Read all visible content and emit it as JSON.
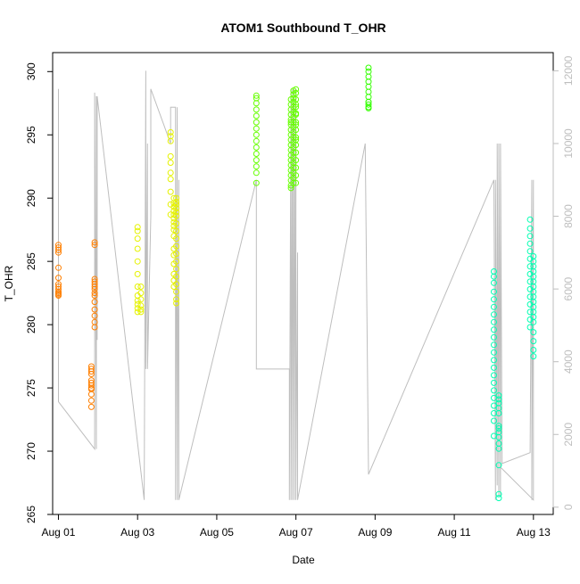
{
  "chart_data": {
    "type": "scatter",
    "title": "ATOM1 Southbound T_OHR",
    "xlabel": "Date",
    "ylabel": "T_OHR",
    "xlim": [
      "2016-07-31T20:30",
      "2016-08-13T12:00"
    ],
    "ylim": [
      265,
      301.5
    ],
    "y2lim": [
      -200,
      12500
    ],
    "grid": false,
    "legend": "none",
    "x_ticks": [
      {
        "date": "2016-08-01",
        "label": "Aug 01"
      },
      {
        "date": "2016-08-03",
        "label": "Aug 03"
      },
      {
        "date": "2016-08-05",
        "label": "Aug 05"
      },
      {
        "date": "2016-08-07",
        "label": "Aug 07"
      },
      {
        "date": "2016-08-09",
        "label": "Aug 09"
      },
      {
        "date": "2016-08-11",
        "label": "Aug 11"
      },
      {
        "date": "2016-08-13",
        "label": "Aug 13"
      }
    ],
    "y_ticks": [
      265,
      270,
      275,
      280,
      285,
      290,
      295,
      300
    ],
    "y2_ticks": [
      0,
      2000,
      4000,
      6000,
      8000,
      10000,
      12000
    ],
    "colors": {
      "line": "#bebebe",
      "axis": "#000000",
      "right_axis": "#bebebe"
    },
    "secondary_line": {
      "axis": "right",
      "x": [
        "2016-08-01T00:00",
        "2016-08-01T00:00",
        "2016-08-01T00:00",
        "2016-08-01T00:00",
        "2016-08-01T22:00",
        "2016-08-01T22:00",
        "2016-08-01T23:00",
        "2016-08-01T23:00",
        "2016-08-01T23:30",
        "2016-08-01T23:30",
        "2016-08-03T04:00",
        "2016-08-03T05:00",
        "2016-08-03T05:00",
        "2016-08-03T06:00",
        "2016-08-03T06:00",
        "2016-08-03T08:00",
        "2016-08-03T08:00",
        "2016-08-03T20:00",
        "2016-08-03T20:00",
        "2016-08-03T23:00",
        "2016-08-03T23:00",
        "2016-08-04T00:00",
        "2016-08-04T00:00",
        "2016-08-04T01:00",
        "2016-08-04T01:00",
        "2016-08-06T00:00",
        "2016-08-06T00:00",
        "2016-08-06T02:00",
        "2016-08-06T20:00",
        "2016-08-06T20:00",
        "2016-08-06T21:00",
        "2016-08-06T21:00",
        "2016-08-06T22:00",
        "2016-08-06T22:00",
        "2016-08-06T23:00",
        "2016-08-06T23:00",
        "2016-08-07T00:00",
        "2016-08-07T00:00",
        "2016-08-07T01:00",
        "2016-08-07T01:00",
        "2016-08-08T18:00",
        "2016-08-08T20:00",
        "2016-08-12T00:00",
        "2016-08-12T01:00",
        "2016-08-12T01:00",
        "2016-08-12T02:00",
        "2016-08-12T02:00",
        "2016-08-12T03:00",
        "2016-08-12T03:00",
        "2016-08-12T04:00",
        "2016-08-12T04:00",
        "2016-08-12T05:00",
        "2016-08-12T22:00",
        "2016-08-12T23:00",
        "2016-08-12T23:00",
        "2016-08-13T00:00",
        "2016-08-13T00:00",
        "2016-08-12T04:00"
      ],
      "y": [
        10000,
        11500,
        3300,
        2900,
        1600,
        11400,
        1600,
        11300,
        4600,
        11300,
        200,
        12000,
        3800,
        10000,
        3800,
        8000,
        11500,
        10000,
        11000,
        11000,
        200,
        11000,
        200,
        9000,
        200,
        9000,
        3800,
        3800,
        3800,
        200,
        11500,
        200,
        11500,
        200,
        11500,
        200,
        11500,
        200,
        7000,
        200,
        10000,
        900,
        9000,
        200,
        9000,
        600,
        10000,
        300,
        10000,
        300,
        10000,
        1200,
        1500,
        9000,
        200,
        9000,
        200,
        1100
      ]
    },
    "series": [
      {
        "color": "#ff7f00",
        "x": [
          "2016-08-01T00:00",
          "2016-08-01T00:00",
          "2016-08-01T00:00",
          "2016-08-01T00:00",
          "2016-08-01T00:00",
          "2016-08-01T00:00",
          "2016-08-01T00:00",
          "2016-08-01T00:00",
          "2016-08-01T00:00",
          "2016-08-01T00:00",
          "2016-08-01T00:00",
          "2016-08-01T00:00",
          "2016-08-01T00:00",
          "2016-08-01T20:00",
          "2016-08-01T20:00",
          "2016-08-01T20:00",
          "2016-08-01T20:00",
          "2016-08-01T20:00",
          "2016-08-01T20:00",
          "2016-08-01T20:00",
          "2016-08-01T20:00",
          "2016-08-01T20:00",
          "2016-08-01T20:00",
          "2016-08-01T20:00",
          "2016-08-01T20:00",
          "2016-08-01T22:00",
          "2016-08-01T22:00",
          "2016-08-01T22:00",
          "2016-08-01T22:00",
          "2016-08-01T22:00",
          "2016-08-01T22:00",
          "2016-08-01T22:00",
          "2016-08-01T22:00",
          "2016-08-01T22:00",
          "2016-08-01T22:00",
          "2016-08-01T22:00",
          "2016-08-01T22:00",
          "2016-08-01T22:00",
          "2016-08-01T22:00"
        ],
        "y": [
          286.3,
          286.1,
          285.7,
          284.5,
          283.7,
          283.2,
          282.8,
          282.6,
          282.5,
          282.4,
          282.3,
          283.0,
          285.9,
          276.7,
          276.5,
          276.1,
          275.6,
          275.4,
          275.2,
          275.0,
          274.9,
          274.5,
          274.0,
          273.5,
          276.3,
          286.5,
          286.3,
          283.6,
          283.4,
          283.2,
          283.0,
          282.8,
          282.5,
          282.3,
          281.8,
          281.2,
          280.7,
          280.2,
          279.8
        ]
      },
      {
        "color": "#e5f200",
        "x": [
          "2016-08-03T00:00",
          "2016-08-03T00:00",
          "2016-08-03T00:00",
          "2016-08-03T00:00",
          "2016-08-03T00:00",
          "2016-08-03T00:00",
          "2016-08-03T00:00",
          "2016-08-03T00:00",
          "2016-08-03T00:00",
          "2016-08-03T00:00",
          "2016-08-03T00:00",
          "2016-08-03T00:00",
          "2016-08-03T02:00",
          "2016-08-03T02:00",
          "2016-08-03T02:00",
          "2016-08-03T02:00",
          "2016-08-03T02:00",
          "2016-08-03T02:00",
          "2016-08-03T20:00",
          "2016-08-03T20:00",
          "2016-08-03T20:00",
          "2016-08-03T20:00",
          "2016-08-03T20:00",
          "2016-08-03T20:00",
          "2016-08-03T20:00",
          "2016-08-03T20:00",
          "2016-08-03T20:00",
          "2016-08-03T20:00",
          "2016-08-03T22:00",
          "2016-08-03T22:00",
          "2016-08-03T22:00",
          "2016-08-03T22:00",
          "2016-08-03T22:00",
          "2016-08-03T22:00",
          "2016-08-03T22:00",
          "2016-08-03T22:00",
          "2016-08-03T22:00",
          "2016-08-03T22:00",
          "2016-08-03T22:00",
          "2016-08-03T22:00",
          "2016-08-03T22:00",
          "2016-08-03T22:00",
          "2016-08-03T22:00",
          "2016-08-03T22:00",
          "2016-08-03T23:30",
          "2016-08-03T23:30",
          "2016-08-03T23:30",
          "2016-08-03T23:30",
          "2016-08-03T23:30",
          "2016-08-03T23:30",
          "2016-08-03T23:30",
          "2016-08-03T23:30",
          "2016-08-03T23:30",
          "2016-08-03T23:30",
          "2016-08-03T23:30",
          "2016-08-03T23:30",
          "2016-08-03T23:30",
          "2016-08-03T23:30",
          "2016-08-03T23:30",
          "2016-08-03T23:30",
          "2016-08-03T23:30",
          "2016-08-03T23:30"
        ],
        "y": [
          287.7,
          287.4,
          286.8,
          286.0,
          285.0,
          284.0,
          283.0,
          282.3,
          281.9,
          281.6,
          281.3,
          281.0,
          283.0,
          282.5,
          282.0,
          281.5,
          281.2,
          281.0,
          295.2,
          294.9,
          294.5,
          293.3,
          292.8,
          292.0,
          291.5,
          290.5,
          289.5,
          288.7,
          290.0,
          289.6,
          289.3,
          289.0,
          288.7,
          288.4,
          288.1,
          287.8,
          287.5,
          287.0,
          286.0,
          285.5,
          284.8,
          284.0,
          283.5,
          283.0,
          290.0,
          289.7,
          289.2,
          288.6,
          288.0,
          287.4,
          286.8,
          286.2,
          285.6,
          285.0,
          284.4,
          283.8,
          283.2,
          282.6,
          282.0,
          281.7,
          289.5,
          288.9
        ]
      },
      {
        "color": "#66ff00",
        "x": [
          "2016-08-06T00:00",
          "2016-08-06T00:00",
          "2016-08-06T00:00",
          "2016-08-06T00:00",
          "2016-08-06T00:00",
          "2016-08-06T00:00",
          "2016-08-06T00:00",
          "2016-08-06T00:00",
          "2016-08-06T00:00",
          "2016-08-06T00:00",
          "2016-08-06T00:00",
          "2016-08-06T00:00",
          "2016-08-06T00:00",
          "2016-08-06T00:00",
          "2016-08-06T00:00",
          "2016-08-06T21:00",
          "2016-08-06T21:00",
          "2016-08-06T21:00",
          "2016-08-06T21:00",
          "2016-08-06T21:00",
          "2016-08-06T21:00",
          "2016-08-06T21:00",
          "2016-08-06T21:00",
          "2016-08-06T21:00",
          "2016-08-06T21:00",
          "2016-08-06T21:00",
          "2016-08-06T21:00",
          "2016-08-06T21:00",
          "2016-08-06T21:00",
          "2016-08-06T21:00",
          "2016-08-06T21:00",
          "2016-08-06T21:00",
          "2016-08-06T21:00",
          "2016-08-06T21:00",
          "2016-08-06T21:00",
          "2016-08-06T22:30",
          "2016-08-06T22:30",
          "2016-08-06T22:30",
          "2016-08-06T22:30",
          "2016-08-06T22:30",
          "2016-08-06T22:30",
          "2016-08-06T22:30",
          "2016-08-06T22:30",
          "2016-08-06T22:30",
          "2016-08-06T22:30",
          "2016-08-06T22:30",
          "2016-08-06T22:30",
          "2016-08-06T22:30",
          "2016-08-06T22:30",
          "2016-08-06T22:30",
          "2016-08-06T22:30",
          "2016-08-06T22:30",
          "2016-08-06T22:30",
          "2016-08-06T22:30",
          "2016-08-06T22:30",
          "2016-08-07T00:00",
          "2016-08-07T00:00",
          "2016-08-07T00:00",
          "2016-08-07T00:00",
          "2016-08-07T00:00",
          "2016-08-07T00:00",
          "2016-08-07T00:00",
          "2016-08-07T00:00",
          "2016-08-07T00:00",
          "2016-08-07T00:00",
          "2016-08-07T00:00",
          "2016-08-07T00:00",
          "2016-08-07T00:00",
          "2016-08-07T00:00",
          "2016-08-07T00:00",
          "2016-08-07T00:00",
          "2016-08-07T00:00",
          "2016-08-07T00:00"
        ],
        "y": [
          298.1,
          297.9,
          297.5,
          297.0,
          296.5,
          296.0,
          295.5,
          295.0,
          294.5,
          294.0,
          293.5,
          293.0,
          292.5,
          292.0,
          291.2,
          297.8,
          297.4,
          297.0,
          296.6,
          296.2,
          295.8,
          295.4,
          295.0,
          294.6,
          294.2,
          293.8,
          293.4,
          293.0,
          292.6,
          292.2,
          291.8,
          291.4,
          291.0,
          290.8,
          296.0,
          298.5,
          298.2,
          297.9,
          297.6,
          297.2,
          296.8,
          296.4,
          296.0,
          295.6,
          295.2,
          294.8,
          294.4,
          294.0,
          293.6,
          293.2,
          292.8,
          292.4,
          292.0,
          291.6,
          291.2,
          298.6,
          298.3,
          297.8,
          297.2,
          296.6,
          296.0,
          295.4,
          294.8,
          294.2,
          293.6,
          293.0,
          292.4,
          291.8,
          291.2,
          294.6,
          295.8,
          296.7,
          297.4
        ]
      },
      {
        "color": "#33ff00",
        "x": [
          "2016-08-08T20:00",
          "2016-08-08T20:00",
          "2016-08-08T20:00",
          "2016-08-08T20:00",
          "2016-08-08T20:00",
          "2016-08-08T20:00",
          "2016-08-08T20:00",
          "2016-08-08T20:00",
          "2016-08-08T20:00",
          "2016-08-08T20:00",
          "2016-08-08T20:00",
          "2016-08-08T20:00"
        ],
        "y": [
          300.3,
          300.0,
          299.6,
          299.2,
          298.8,
          298.4,
          298.0,
          297.6,
          297.4,
          297.2,
          297.1,
          297.6
        ]
      },
      {
        "color": "#00ffb2",
        "x": [
          "2016-08-12T00:00",
          "2016-08-12T00:00",
          "2016-08-12T00:00",
          "2016-08-12T00:00",
          "2016-08-12T00:00",
          "2016-08-12T00:00",
          "2016-08-12T00:00",
          "2016-08-12T00:00",
          "2016-08-12T00:00",
          "2016-08-12T00:00",
          "2016-08-12T00:00",
          "2016-08-12T00:00",
          "2016-08-12T00:00",
          "2016-08-12T00:00",
          "2016-08-12T00:00",
          "2016-08-12T00:00",
          "2016-08-12T00:00",
          "2016-08-12T00:00",
          "2016-08-12T00:00",
          "2016-08-12T00:00",
          "2016-08-12T00:00",
          "2016-08-12T00:00",
          "2016-08-12T03:00",
          "2016-08-12T03:00",
          "2016-08-12T03:00",
          "2016-08-12T03:00",
          "2016-08-12T03:00",
          "2016-08-12T03:00",
          "2016-08-12T03:00",
          "2016-08-12T03:00",
          "2016-08-12T03:00",
          "2016-08-12T03:00",
          "2016-08-12T03:00",
          "2016-08-12T03:00",
          "2016-08-12T03:00",
          "2016-08-12T03:00",
          "2016-08-12T22:00",
          "2016-08-12T22:00",
          "2016-08-12T22:00",
          "2016-08-12T22:00",
          "2016-08-12T22:00",
          "2016-08-12T22:00",
          "2016-08-12T22:00",
          "2016-08-12T22:00",
          "2016-08-12T22:00",
          "2016-08-12T22:00",
          "2016-08-12T22:00",
          "2016-08-12T22:00",
          "2016-08-12T22:00",
          "2016-08-12T22:00",
          "2016-08-12T22:00",
          "2016-08-13T00:00",
          "2016-08-13T00:00",
          "2016-08-13T00:00",
          "2016-08-13T00:00",
          "2016-08-13T00:00",
          "2016-08-13T00:00",
          "2016-08-13T00:00",
          "2016-08-13T00:00",
          "2016-08-13T00:00",
          "2016-08-13T00:00",
          "2016-08-13T00:00",
          "2016-08-13T00:00",
          "2016-08-13T00:00",
          "2016-08-13T00:00",
          "2016-08-13T00:00",
          "2016-08-13T00:00",
          "2016-08-13T00:00",
          "2016-08-13T00:00"
        ],
        "y": [
          284.2,
          283.8,
          283.3,
          282.6,
          282.0,
          281.4,
          280.8,
          280.2,
          279.6,
          279.0,
          278.4,
          277.8,
          277.2,
          276.6,
          276.0,
          275.4,
          274.8,
          274.2,
          273.6,
          273.0,
          272.4,
          271.2,
          274.4,
          274.1,
          273.8,
          273.4,
          271.5,
          271.1,
          270.6,
          270.2,
          268.9,
          266.6,
          266.3,
          272.0,
          273.0,
          271.8,
          288.3,
          287.6,
          287.0,
          286.4,
          285.8,
          285.2,
          284.6,
          284.0,
          283.4,
          282.8,
          282.2,
          281.6,
          281.0,
          280.4,
          279.8,
          285.4,
          285.0,
          284.6,
          284.2,
          283.8,
          283.4,
          283.0,
          282.6,
          282.2,
          281.8,
          281.4,
          281.0,
          280.6,
          280.2,
          279.4,
          278.7,
          278.0,
          277.5
        ]
      }
    ]
  }
}
